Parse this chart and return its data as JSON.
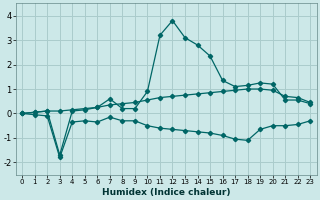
{
  "xlabel": "Humidex (Indice chaleur)",
  "background_color": "#cce8e8",
  "grid_color": "#aacccc",
  "line_color": "#006666",
  "xlim": [
    -0.5,
    23.5
  ],
  "ylim": [
    -2.5,
    4.5
  ],
  "xticks": [
    0,
    1,
    2,
    3,
    4,
    5,
    6,
    7,
    8,
    9,
    10,
    11,
    12,
    13,
    14,
    15,
    16,
    17,
    18,
    19,
    20,
    21,
    22,
    23
  ],
  "yticks": [
    -2,
    -1,
    0,
    1,
    2,
    3,
    4
  ],
  "series2_x": [
    0,
    1,
    2,
    3,
    4,
    5,
    6,
    7,
    8,
    9,
    10,
    11,
    12,
    13,
    14,
    15,
    16,
    17,
    18,
    19,
    20,
    21,
    22,
    23
  ],
  "series2_y": [
    0.0,
    0.05,
    0.1,
    -1.7,
    0.1,
    0.15,
    0.25,
    0.6,
    0.2,
    0.2,
    0.9,
    3.2,
    3.8,
    3.1,
    2.8,
    2.35,
    1.35,
    1.1,
    1.15,
    1.25,
    1.2,
    0.55,
    0.55,
    0.4
  ],
  "series1_x": [
    0,
    1,
    2,
    3,
    4,
    5,
    6,
    7,
    8,
    9,
    10,
    11,
    12,
    13,
    14,
    15,
    16,
    17,
    18,
    19,
    20,
    21,
    22,
    23
  ],
  "series1_y": [
    0.0,
    0.05,
    0.1,
    0.1,
    0.15,
    0.2,
    0.25,
    0.35,
    0.4,
    0.45,
    0.55,
    0.65,
    0.7,
    0.75,
    0.8,
    0.85,
    0.9,
    0.95,
    1.0,
    1.0,
    0.95,
    0.7,
    0.65,
    0.45
  ],
  "series3_x": [
    0,
    1,
    2,
    3,
    4,
    5,
    6,
    7,
    8,
    9,
    10,
    11,
    12,
    13,
    14,
    15,
    16,
    17,
    18,
    19,
    20,
    21,
    22,
    23
  ],
  "series3_y": [
    0.0,
    -0.05,
    -0.1,
    -1.8,
    -0.35,
    -0.3,
    -0.35,
    -0.15,
    -0.3,
    -0.3,
    -0.5,
    -0.6,
    -0.65,
    -0.7,
    -0.75,
    -0.8,
    -0.9,
    -1.05,
    -1.1,
    -0.65,
    -0.5,
    -0.5,
    -0.45,
    -0.3
  ]
}
